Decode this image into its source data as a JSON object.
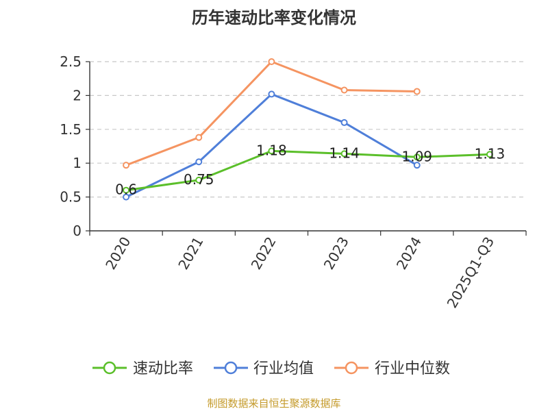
{
  "chart_data": {
    "type": "line",
    "title": "历年速动比率变化情况",
    "categories": [
      "2020",
      "2021",
      "2022",
      "2023",
      "2024",
      "2025Q1-Q3"
    ],
    "ylim": [
      0,
      2.5
    ],
    "yticks": [
      "0",
      "0.5",
      "1",
      "1.5",
      "2",
      "2.5"
    ],
    "grid": true,
    "legend_position": "bottom",
    "series": [
      {
        "name": "速动比率",
        "color": "#5bbf2a",
        "values": [
          0.6,
          0.75,
          1.18,
          1.14,
          1.09,
          1.13
        ],
        "labels": [
          "0.6",
          "0.75",
          "1.18",
          "1.14",
          "1.09",
          "1.13"
        ]
      },
      {
        "name": "行业均值",
        "color": "#4f7fd9",
        "values": [
          0.5,
          1.02,
          2.02,
          1.6,
          0.97,
          null
        ]
      },
      {
        "name": "行业中位数",
        "color": "#f59461",
        "values": [
          0.97,
          1.38,
          2.5,
          2.08,
          2.06,
          null
        ]
      }
    ]
  },
  "source": "制图数据来自恒生聚源数据库"
}
